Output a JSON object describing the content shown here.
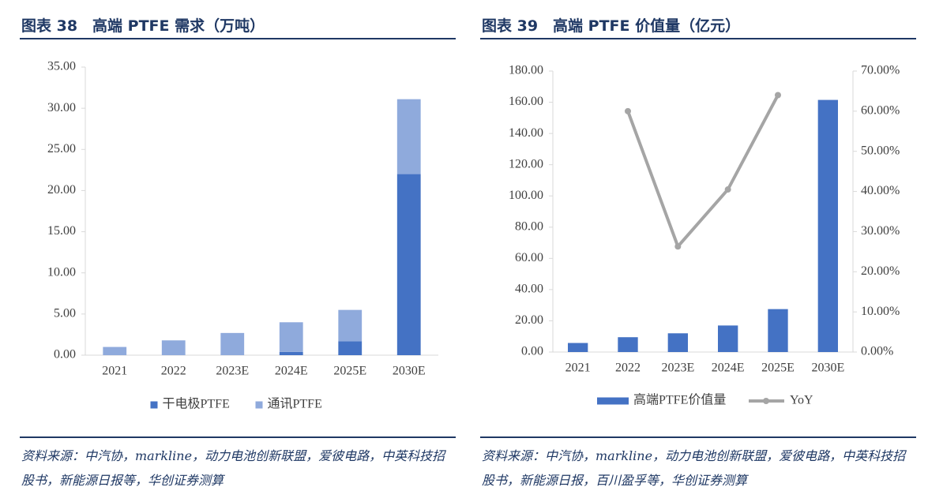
{
  "chart_data": [
    {
      "type": "bar",
      "stacked": true,
      "title": "图表 38　高端 PTFE 需求（万吨）",
      "categories": [
        "2021",
        "2022",
        "2023E",
        "2024E",
        "2025E",
        "2030E"
      ],
      "series": [
        {
          "name": "干电极PTFE",
          "color": "#4472c4",
          "values": [
            0,
            0,
            0,
            0.4,
            1.7,
            22
          ]
        },
        {
          "name": "通讯PTFE",
          "color": "#8faadc",
          "values": [
            1.0,
            1.8,
            2.7,
            3.6,
            3.8,
            9.1
          ]
        }
      ],
      "ylim": [
        0,
        35
      ],
      "yticks": [
        {
          "value": 0,
          "label": "0.00"
        },
        {
          "value": 5,
          "label": "5.00"
        },
        {
          "value": 10,
          "label": "10.00"
        },
        {
          "value": 15,
          "label": "15.00"
        },
        {
          "value": 20,
          "label": "20.00"
        },
        {
          "value": 25,
          "label": "25.00"
        },
        {
          "value": 30,
          "label": "30.00"
        },
        {
          "value": 35,
          "label": "35.00"
        }
      ],
      "source": "资料来源：中汽协，markline，动力电池创新联盟，爱彼电路，中英科技招股书，新能源日报等，华创证券测算"
    },
    {
      "type": "bar",
      "title": "图表 39　高端 PTFE 价值量（亿元）",
      "categories": [
        "2021",
        "2022",
        "2023E",
        "2024E",
        "2025E",
        "2030E"
      ],
      "series": [
        {
          "name": "高端PTFE价值量",
          "color": "#4472c4",
          "values": [
            5.8,
            9.5,
            12,
            17,
            27.5,
            161.5
          ]
        },
        {
          "name": "YoY",
          "type": "line",
          "axis": "y2",
          "color": "#a5a5a5",
          "values": [
            null,
            60,
            26.3,
            40.5,
            64,
            null
          ]
        }
      ],
      "ylim": [
        0,
        180
      ],
      "yticks": [
        {
          "value": 0,
          "label": "0.00"
        },
        {
          "value": 20,
          "label": "20.00"
        },
        {
          "value": 40,
          "label": "40.00"
        },
        {
          "value": 60,
          "label": "60.00"
        },
        {
          "value": 80,
          "label": "80.00"
        },
        {
          "value": 100,
          "label": "100.00"
        },
        {
          "value": 120,
          "label": "120.00"
        },
        {
          "value": 140,
          "label": "140.00"
        },
        {
          "value": 160,
          "label": "160.00"
        },
        {
          "value": 180,
          "label": "180.00"
        }
      ],
      "y2lim": [
        0,
        70
      ],
      "y2ticks": [
        {
          "value": 0,
          "label": "0.00%"
        },
        {
          "value": 10,
          "label": "10.00%"
        },
        {
          "value": 20,
          "label": "20.00%"
        },
        {
          "value": 30,
          "label": "30.00%"
        },
        {
          "value": 40,
          "label": "40.00%"
        },
        {
          "value": 50,
          "label": "50.00%"
        },
        {
          "value": 60,
          "label": "60.00%"
        },
        {
          "value": 70,
          "label": "70.00%"
        }
      ],
      "source": "资料来源：中汽协，markline，动力电池创新联盟，爱彼电路，中英科技招股书，新能源日报，百川盈孚等，华创证券测算"
    }
  ]
}
